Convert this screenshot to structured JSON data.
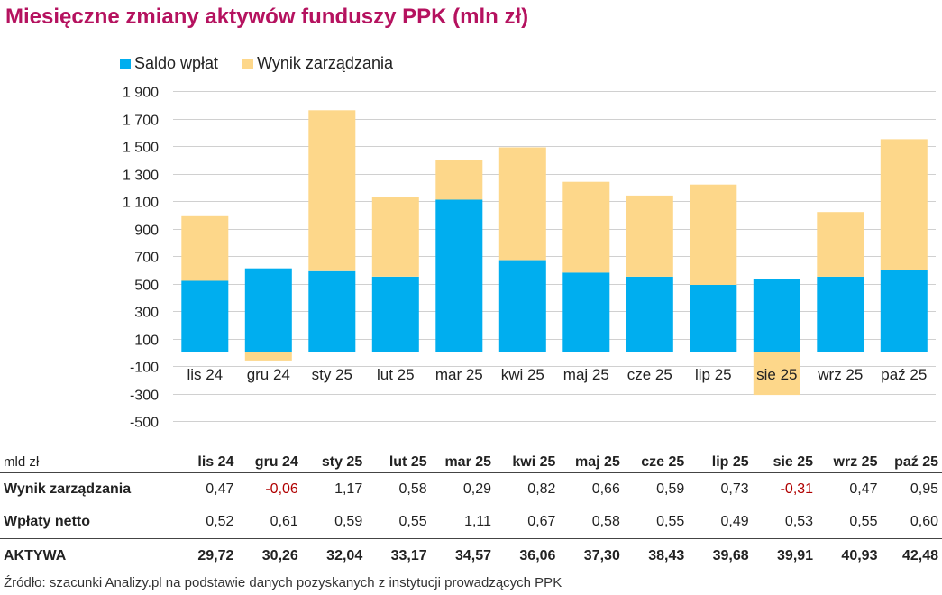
{
  "chart_data": {
    "type": "bar",
    "stacked": true,
    "title": "Miesięczne zmiany aktywów funduszy PPK (mln zł)",
    "categories": [
      "lis 24",
      "gru 24",
      "sty 25",
      "lut 25",
      "mar 25",
      "kwi 25",
      "maj 25",
      "cze 25",
      "lip 25",
      "sie 25",
      "wrz 25",
      "paź 25"
    ],
    "series": [
      {
        "name": "Saldo wpłat",
        "color": "#00aeef",
        "values": [
          520,
          610,
          590,
          550,
          1110,
          670,
          580,
          550,
          490,
          530,
          550,
          600
        ]
      },
      {
        "name": "Wynik zarządzania",
        "color": "#fdd78a",
        "values": [
          470,
          -60,
          1170,
          580,
          290,
          820,
          660,
          590,
          730,
          -310,
          470,
          950
        ]
      }
    ],
    "yticks": [
      1900,
      1700,
      1500,
      1300,
      1100,
      900,
      700,
      500,
      300,
      100,
      -100,
      -300,
      -500
    ],
    "ytick_labels": [
      "1 900",
      "1 700",
      "1 500",
      "1 300",
      "1 100",
      "900",
      "700",
      "500",
      "300",
      "100",
      "-100",
      "-300",
      "-500"
    ],
    "ylim": [
      -500,
      1900
    ],
    "legend_position": "top-left"
  },
  "table": {
    "unit_label": "mld zł",
    "headers": [
      "lis 24",
      "gru 24",
      "sty 25",
      "lut 25",
      "mar 25",
      "kwi 25",
      "maj 25",
      "cze 25",
      "lip 25",
      "sie 25",
      "wrz 25",
      "paź 25"
    ],
    "rows": [
      {
        "label": "Wynik zarządzania",
        "values": [
          "0,47",
          "-0,06",
          "1,17",
          "0,58",
          "0,29",
          "0,82",
          "0,66",
          "0,59",
          "0,73",
          "-0,31",
          "0,47",
          "0,95"
        ]
      },
      {
        "label": "Wpłaty netto",
        "values": [
          "0,52",
          "0,61",
          "0,59",
          "0,55",
          "1,11",
          "0,67",
          "0,58",
          "0,55",
          "0,49",
          "0,53",
          "0,55",
          "0,60"
        ]
      }
    ],
    "total": {
      "label": "AKTYWA",
      "values": [
        "29,72",
        "30,26",
        "32,04",
        "33,17",
        "34,57",
        "36,06",
        "37,30",
        "38,43",
        "39,68",
        "39,91",
        "40,93",
        "42,48"
      ]
    }
  },
  "source": "Źródło: szacunki Analizy.pl na podstawie danych pozyskanych z instytucji prowadzących PPK"
}
